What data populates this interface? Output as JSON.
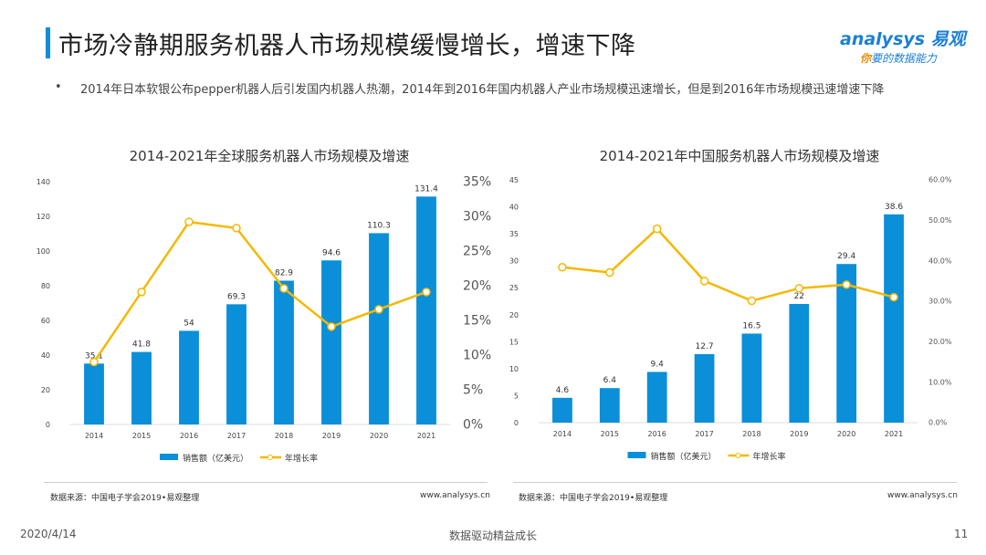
{
  "header": {
    "title": "市场冷静期服务机器人市场规模缓慢增长，增速下降"
  },
  "logo": {
    "brand": "analysys 易观",
    "slogan_accent": "你",
    "slogan": "要的数据能力"
  },
  "bullet": {
    "marker": "•",
    "text": "2014年日本软银公布pepper机器人后引发国内机器人热潮，2014年到2016年国内机器人产业市场规模迅速增长，但是到2016年市场规模迅速增速下降"
  },
  "colors": {
    "bar": "#0a8fd8",
    "line": "#f5b800",
    "accent": "#0a8fd8"
  },
  "chart_data": [
    {
      "type": "bar+line",
      "title": "2014-2021年全球服务机器人市场规模及增速",
      "categories": [
        "2014",
        "2015",
        "2016",
        "2017",
        "2018",
        "2019",
        "2020",
        "2021"
      ],
      "series": [
        {
          "name": "销售额（亿美元）",
          "type": "bar",
          "axis": "left",
          "values": [
            35.1,
            41.8,
            54,
            69.3,
            82.9,
            94.6,
            110.3,
            131.4
          ]
        },
        {
          "name": "年增长率",
          "type": "line",
          "axis": "right",
          "values": [
            9.0,
            19.1,
            29.2,
            28.3,
            19.6,
            14.1,
            16.6,
            19.1
          ]
        }
      ],
      "ylim": [
        0,
        140
      ],
      "yticks": [
        "0",
        "20",
        "40",
        "60",
        "80",
        "100",
        "120",
        "140"
      ],
      "y2lim": [
        0,
        35
      ],
      "y2ticks": [
        "0%",
        "5%",
        "10%",
        "15%",
        "20%",
        "25%",
        "30%",
        "35%"
      ],
      "legend": "bottom",
      "grid": false,
      "source": "数据来源：中国电子学会2019•易观整理",
      "website": "www.analysys.cn"
    },
    {
      "type": "bar+line",
      "title": "2014-2021年中国服务机器人市场规模及增速",
      "categories": [
        "2014",
        "2015",
        "2016",
        "2017",
        "2018",
        "2019",
        "2020",
        "2021"
      ],
      "series": [
        {
          "name": "销售额（亿美元）",
          "type": "bar",
          "axis": "left",
          "values": [
            4.6,
            6.4,
            9.4,
            12.7,
            16.5,
            22,
            29.4,
            38.6
          ]
        },
        {
          "name": "年增长率",
          "type": "line",
          "axis": "right",
          "values": [
            38.4,
            37.1,
            47.9,
            35.0,
            30.1,
            33.2,
            34.1,
            31.0
          ]
        }
      ],
      "ylim": [
        0,
        45
      ],
      "yticks": [
        "0",
        "5",
        "10",
        "15",
        "20",
        "25",
        "30",
        "35",
        "40",
        "45"
      ],
      "y2lim": [
        0,
        60
      ],
      "y2ticks": [
        "0.0%",
        "10.0%",
        "20.0%",
        "30.0%",
        "40.0%",
        "50.0%",
        "60.0%"
      ],
      "legend": "bottom",
      "grid": false,
      "source": "数据来源：中国电子学会2019•易观整理",
      "website": "www.analysys.cn"
    }
  ],
  "footer": {
    "date": "2020/4/14",
    "center": "数据驱动精益成长",
    "page": "11"
  }
}
